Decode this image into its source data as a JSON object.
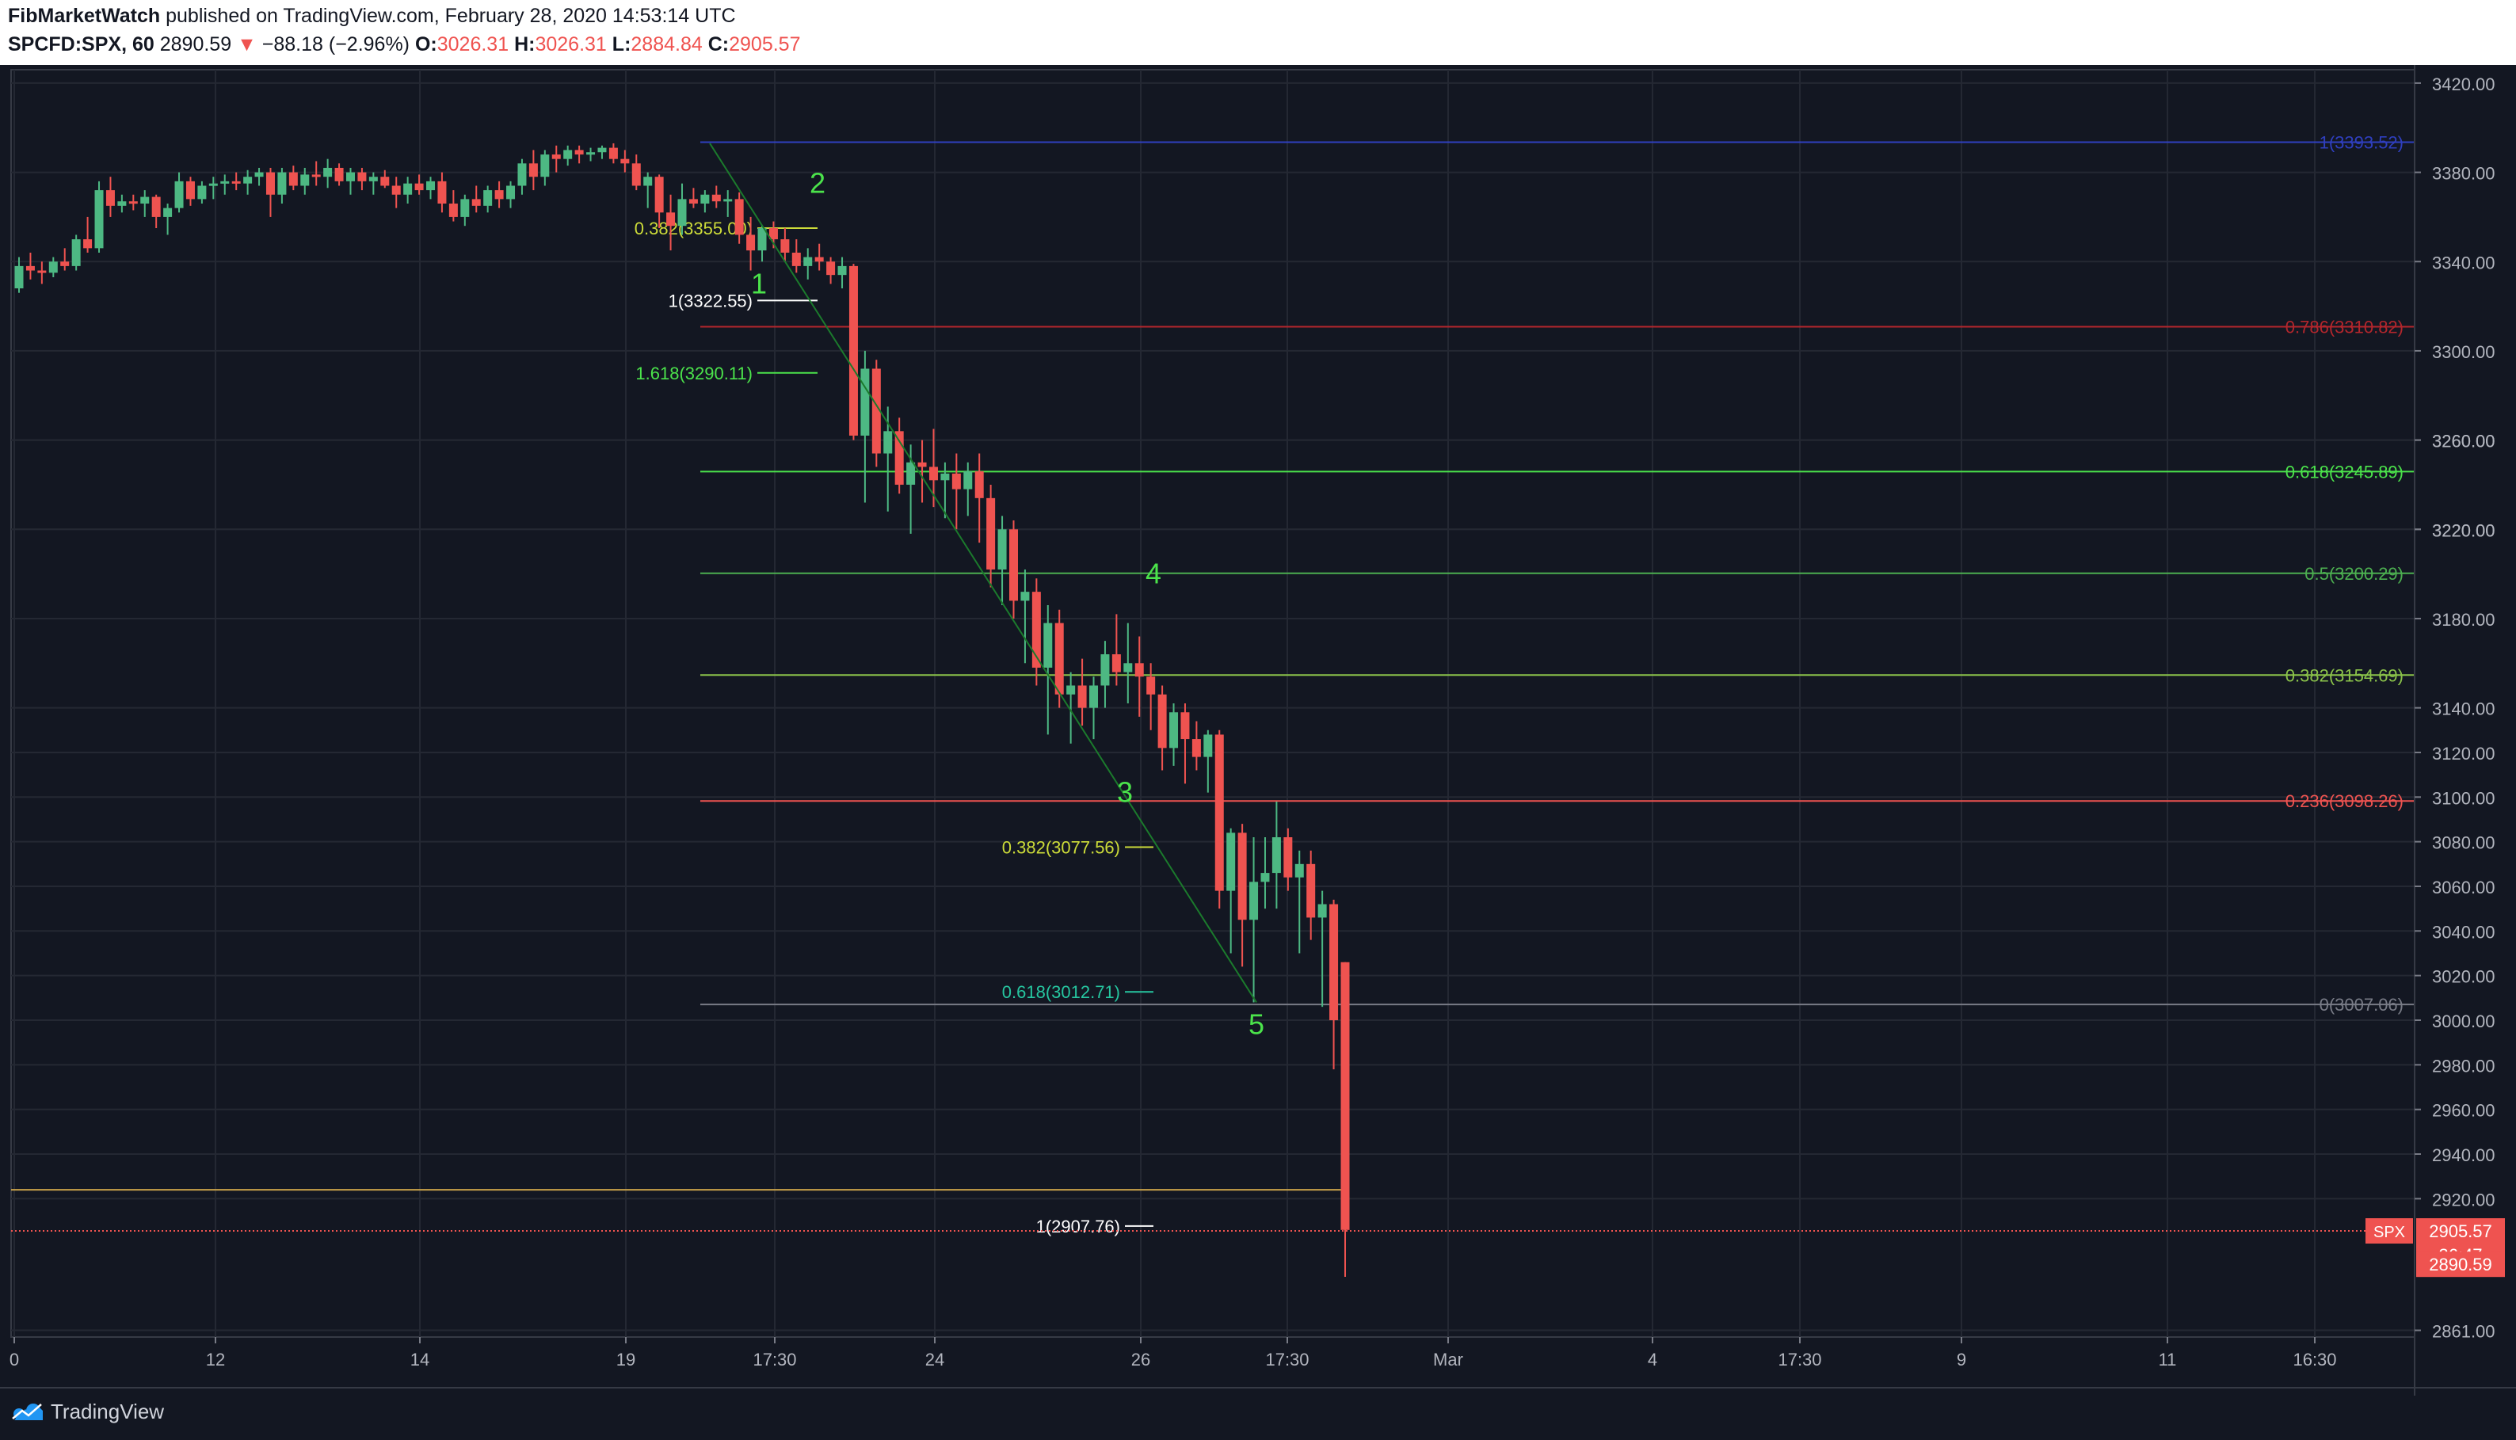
{
  "header": {
    "author": "FibMarketWatch",
    "published": "published on TradingView.com, February 28, 2020 14:53:14 UTC",
    "symbol": "SPCFD:SPX, 60",
    "last": "2890.59",
    "arrow": "▼",
    "change": "−88.18 (−2.96%)",
    "o_label": "O:",
    "o_value": "3026.31",
    "h_label": "H:",
    "h_value": "3026.31",
    "l_label": "L:",
    "l_value": "2884.84",
    "c_label": "C:",
    "c_value": "2905.57"
  },
  "footer": {
    "brand": "TradingView",
    "icon": "tradingview-cloud-icon"
  },
  "colors": {
    "background": "#131722",
    "up": "#4db883",
    "down": "#ef5350",
    "grid": "#242833",
    "axis_text": "#b2b5be",
    "wave_label": "#4be34b"
  },
  "chart_data": {
    "type": "candlestick",
    "timeframe": "60",
    "ylim": [
      2861,
      3420
    ],
    "x_ticks": [
      "0",
      "12",
      "14",
      "19",
      "17:30",
      "24",
      "26",
      "17:30",
      "Mar",
      "4",
      "17:30",
      "9",
      "11",
      "16:30"
    ],
    "y_ticks": [
      3420,
      3380,
      3340,
      3300,
      3260,
      3220,
      3180,
      3140,
      3100,
      3060,
      3040,
      3020,
      3000,
      2980,
      2960,
      2940,
      2920
    ],
    "y_tick_labels": [
      "3420.00",
      "3380.00",
      "3340.00",
      "3300.00",
      "3260.00",
      "3220.00",
      "3180.00",
      "3140.00",
      "3100.00",
      "3060.00",
      "3040.00",
      "3020.00",
      "3000.00",
      "2980.00",
      "2960.00",
      "2940.00",
      "2920.00"
    ],
    "y_extra_tick": {
      "value": 2861,
      "label": "2861.00"
    },
    "y_tick_3080": {
      "value": 3080,
      "label": "3080.00"
    },
    "y_tick_3120": {
      "value": 3120,
      "label": "3120.00"
    },
    "y_tick_3260": {
      "value": 3260,
      "label": "3260.00"
    },
    "y_tick_3220": {
      "value": 3220,
      "label": "3220.00"
    },
    "candles": [
      [
        3328,
        3342,
        3326,
        3338
      ],
      [
        3338,
        3344,
        3332,
        3336
      ],
      [
        3336,
        3340,
        3330,
        3335
      ],
      [
        3335,
        3342,
        3333,
        3340
      ],
      [
        3340,
        3346,
        3336,
        3338
      ],
      [
        3338,
        3352,
        3336,
        3350
      ],
      [
        3350,
        3360,
        3344,
        3346
      ],
      [
        3346,
        3376,
        3344,
        3372
      ],
      [
        3372,
        3378,
        3360,
        3365
      ],
      [
        3365,
        3370,
        3362,
        3367
      ],
      [
        3367,
        3370,
        3363,
        3366
      ],
      [
        3366,
        3372,
        3360,
        3369
      ],
      [
        3369,
        3370,
        3355,
        3360
      ],
      [
        3360,
        3366,
        3352,
        3364
      ],
      [
        3364,
        3380,
        3362,
        3376
      ],
      [
        3376,
        3378,
        3365,
        3368
      ],
      [
        3368,
        3376,
        3366,
        3374
      ],
      [
        3374,
        3378,
        3368,
        3375
      ],
      [
        3375,
        3379,
        3370,
        3376
      ],
      [
        3376,
        3380,
        3372,
        3375
      ],
      [
        3375,
        3381,
        3370,
        3378
      ],
      [
        3378,
        3382,
        3374,
        3380
      ],
      [
        3380,
        3382,
        3360,
        3370
      ],
      [
        3370,
        3382,
        3366,
        3380
      ],
      [
        3380,
        3383,
        3372,
        3374
      ],
      [
        3374,
        3382,
        3370,
        3379
      ],
      [
        3379,
        3385,
        3374,
        3378
      ],
      [
        3378,
        3386,
        3373,
        3382
      ],
      [
        3382,
        3384,
        3374,
        3376
      ],
      [
        3376,
        3382,
        3370,
        3380
      ],
      [
        3380,
        3382,
        3372,
        3376
      ],
      [
        3376,
        3380,
        3370,
        3378
      ],
      [
        3378,
        3381,
        3373,
        3374
      ],
      [
        3374,
        3378,
        3364,
        3370
      ],
      [
        3370,
        3378,
        3366,
        3375
      ],
      [
        3375,
        3379,
        3370,
        3372
      ],
      [
        3372,
        3378,
        3368,
        3376
      ],
      [
        3376,
        3380,
        3362,
        3366
      ],
      [
        3366,
        3372,
        3358,
        3360
      ],
      [
        3360,
        3370,
        3356,
        3368
      ],
      [
        3368,
        3374,
        3362,
        3365
      ],
      [
        3365,
        3374,
        3362,
        3372
      ],
      [
        3372,
        3376,
        3364,
        3368
      ],
      [
        3368,
        3376,
        3364,
        3374
      ],
      [
        3374,
        3386,
        3370,
        3384
      ],
      [
        3384,
        3390,
        3372,
        3378
      ],
      [
        3378,
        3390,
        3374,
        3388
      ],
      [
        3388,
        3392,
        3380,
        3386
      ],
      [
        3386,
        3392,
        3383,
        3390
      ],
      [
        3390,
        3392,
        3384,
        3388
      ],
      [
        3388,
        3391,
        3385,
        3389
      ],
      [
        3389,
        3392,
        3386,
        3391
      ],
      [
        3391,
        3393,
        3384,
        3386
      ],
      [
        3386,
        3390,
        3380,
        3384
      ],
      [
        3384,
        3388,
        3372,
        3374
      ],
      [
        3374,
        3380,
        3364,
        3378
      ],
      [
        3378,
        3379,
        3355,
        3362
      ],
      [
        3362,
        3370,
        3345,
        3356
      ],
      [
        3356,
        3375,
        3352,
        3368
      ],
      [
        3368,
        3373,
        3364,
        3366
      ],
      [
        3366,
        3372,
        3362,
        3370
      ],
      [
        3370,
        3374,
        3364,
        3367
      ],
      [
        3367,
        3372,
        3360,
        3368
      ],
      [
        3368,
        3371,
        3348,
        3352
      ],
      [
        3352,
        3360,
        3336,
        3345
      ],
      [
        3345,
        3356,
        3340,
        3355
      ],
      [
        3355,
        3358,
        3346,
        3350
      ],
      [
        3350,
        3355,
        3340,
        3344
      ],
      [
        3344,
        3350,
        3335,
        3338
      ],
      [
        3338,
        3346,
        3332,
        3342
      ],
      [
        3342,
        3348,
        3336,
        3340
      ],
      [
        3340,
        3342,
        3330,
        3334
      ],
      [
        3334,
        3342,
        3328,
        3338
      ],
      [
        3338,
        3339,
        3260,
        3262
      ],
      [
        3262,
        3300,
        3232,
        3292
      ],
      [
        3292,
        3296,
        3248,
        3254
      ],
      [
        3254,
        3275,
        3228,
        3264
      ],
      [
        3264,
        3270,
        3236,
        3240
      ],
      [
        3240,
        3258,
        3218,
        3250
      ],
      [
        3250,
        3260,
        3232,
        3248
      ],
      [
        3248,
        3265,
        3230,
        3242
      ],
      [
        3242,
        3250,
        3225,
        3245
      ],
      [
        3245,
        3254,
        3220,
        3238
      ],
      [
        3238,
        3250,
        3226,
        3246
      ],
      [
        3246,
        3254,
        3214,
        3234
      ],
      [
        3234,
        3240,
        3194,
        3202
      ],
      [
        3202,
        3226,
        3186,
        3220
      ],
      [
        3220,
        3224,
        3180,
        3188
      ],
      [
        3188,
        3202,
        3160,
        3192
      ],
      [
        3192,
        3198,
        3150,
        3158
      ],
      [
        3158,
        3186,
        3128,
        3178
      ],
      [
        3178,
        3184,
        3140,
        3146
      ],
      [
        3146,
        3156,
        3124,
        3150
      ],
      [
        3150,
        3162,
        3132,
        3140
      ],
      [
        3140,
        3154,
        3126,
        3150
      ],
      [
        3150,
        3170,
        3140,
        3164
      ],
      [
        3164,
        3182,
        3150,
        3156
      ],
      [
        3156,
        3178,
        3142,
        3160
      ],
      [
        3160,
        3172,
        3136,
        3154
      ],
      [
        3154,
        3160,
        3130,
        3146
      ],
      [
        3146,
        3150,
        3112,
        3122
      ],
      [
        3122,
        3142,
        3114,
        3138
      ],
      [
        3138,
        3142,
        3106,
        3126
      ],
      [
        3126,
        3134,
        3112,
        3118
      ],
      [
        3118,
        3130,
        3102,
        3128
      ],
      [
        3128,
        3130,
        3050,
        3058
      ],
      [
        3058,
        3086,
        3030,
        3084
      ],
      [
        3084,
        3088,
        3024,
        3045
      ],
      [
        3045,
        3082,
        3008,
        3062
      ],
      [
        3062,
        3082,
        3050,
        3066
      ],
      [
        3066,
        3098,
        3050,
        3082
      ],
      [
        3082,
        3086,
        3058,
        3064
      ],
      [
        3064,
        3076,
        3030,
        3070
      ],
      [
        3070,
        3076,
        3036,
        3046
      ],
      [
        3046,
        3058,
        3006,
        3052
      ],
      [
        3052,
        3054,
        2978,
        3000
      ],
      [
        3026,
        3026,
        2885,
        2906
      ]
    ],
    "wave_labels": [
      "1",
      "2",
      "3",
      "4",
      "5"
    ],
    "fib_left": [
      {
        "label": "0.382(3355.00)",
        "value": 3355.0,
        "color": "#cddc39"
      },
      {
        "label": "1(3322.55)",
        "value": 3322.55,
        "color": "#ffffff"
      },
      {
        "label": "1.618(3290.11)",
        "value": 3290.11,
        "color": "#4be34b"
      },
      {
        "label": "0.382(3077.56)",
        "value": 3077.56,
        "color": "#cddc39"
      },
      {
        "label": "0.618(3012.71)",
        "value": 3012.71,
        "color": "#26c6a0"
      },
      {
        "label": "1(2907.76)",
        "value": 2907.76,
        "color": "#ffffff"
      }
    ],
    "fib_right": [
      {
        "label": "1(3393.52)",
        "value": 3393.52,
        "color": "#2f3fbf"
      },
      {
        "label": "0.786(3310.82)",
        "value": 3310.82,
        "color": "#b3262c"
      },
      {
        "label": "0.618(3245.89)",
        "value": 3245.89,
        "color": "#4be34b"
      },
      {
        "label": "0.5(3200.29)",
        "value": 3200.29,
        "color": "#4caf50"
      },
      {
        "label": "0.382(3154.69)",
        "value": 3154.69,
        "color": "#8bc34a"
      },
      {
        "label": "0.236(3098.26)",
        "value": 3098.26,
        "color": "#ef5350"
      },
      {
        "label": "0(3007.06)",
        "value": 3007.06,
        "color": "#787b86"
      }
    ],
    "horizontal_line": {
      "value": 2924,
      "color": "#c8a24a"
    },
    "last_price_line": {
      "value": 2905.57,
      "color": "#ef5350"
    },
    "price_badges": {
      "symbol": "SPX",
      "close": "2905.57",
      "countdown": "36:47",
      "last": "2890.59"
    }
  }
}
